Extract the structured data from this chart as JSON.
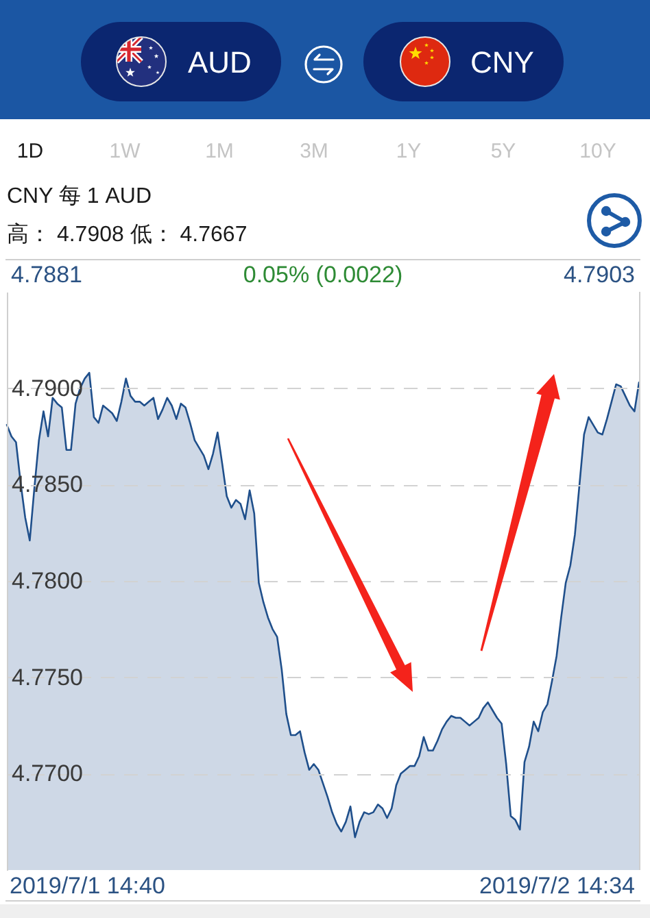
{
  "chart_data": {
    "type": "area",
    "title": "CNY 每 1 AUD",
    "subtitle": "高： 4.7908 低： 4.7667",
    "annotations": [
      "AUD",
      "CNY",
      "1D",
      "1W",
      "1M",
      "3M",
      "1Y",
      "5Y",
      "10Y",
      "4.7881",
      "0.05% (0.0022)",
      "4.7903",
      "2019/7/1 14:40",
      "2019/7/2 14:34"
    ],
    "categories": [
      null,
      null,
      null,
      null,
      null,
      null,
      null,
      null,
      null,
      null,
      null,
      null,
      null,
      null,
      null,
      null,
      null,
      null,
      null,
      null,
      null,
      null,
      null,
      null,
      null,
      null,
      null,
      null,
      null,
      null,
      null,
      null,
      null,
      null,
      null,
      null,
      null,
      null,
      null,
      null,
      null,
      null,
      null,
      null,
      null,
      null,
      null,
      null,
      null,
      null,
      null,
      null,
      null,
      null,
      null,
      null,
      null,
      null,
      null,
      null,
      null,
      null,
      null,
      null,
      null,
      null,
      null,
      null,
      null,
      null,
      null,
      null,
      null,
      null,
      null,
      null,
      null,
      null,
      null,
      null,
      null,
      null,
      null,
      null,
      null,
      null,
      null,
      null,
      null,
      null,
      null,
      null,
      null,
      null,
      null,
      null,
      null,
      null,
      null,
      null,
      null,
      null,
      null,
      null,
      null,
      null,
      null,
      null,
      null,
      null,
      null,
      null,
      null,
      null,
      null,
      null,
      null,
      null,
      null,
      null,
      null,
      null,
      null,
      null,
      null,
      null,
      null,
      null,
      null,
      null,
      null,
      null,
      null,
      null,
      null,
      null,
      null,
      null,
      null
    ],
    "series": [
      {
        "color": "#1f4f8b",
        "values": [
          4.7881,
          4.7875,
          4.7872,
          4.7851,
          4.7833,
          4.7821,
          4.7848,
          4.7873,
          4.7888,
          4.7875,
          4.7895,
          4.7892,
          4.789,
          4.7868,
          4.7868,
          4.7892,
          4.79,
          4.7905,
          4.7908,
          4.7885,
          4.7882,
          4.7891,
          4.7889,
          4.7887,
          4.7883,
          4.7893,
          4.7905,
          4.7896,
          4.7893,
          4.7893,
          4.7891,
          4.7893,
          4.7895,
          4.7884,
          4.7889,
          4.7895,
          4.7891,
          4.7884,
          4.7892,
          4.789,
          4.7882,
          4.7873,
          4.7869,
          4.7865,
          4.7858,
          4.7866,
          4.7877,
          4.7861,
          4.7844,
          4.7838,
          4.7842,
          4.784,
          4.7832,
          4.7847,
          4.7835,
          4.7799,
          4.7789,
          4.7781,
          4.7775,
          4.7771,
          4.7754,
          4.7731,
          4.772,
          4.772,
          4.7722,
          4.7711,
          4.7702,
          4.7705,
          4.7702,
          4.7695,
          4.7688,
          4.768,
          4.7674,
          4.767,
          4.7675,
          4.7683,
          4.7667,
          4.7675,
          4.768,
          4.7679,
          4.768,
          4.7684,
          4.7682,
          4.7677,
          4.7682,
          4.7694,
          4.77,
          4.7702,
          4.7704,
          4.7704,
          4.7709,
          4.7719,
          4.7712,
          4.7712,
          4.7717,
          4.7723,
          4.7727,
          4.773,
          4.7729,
          4.7729,
          4.7727,
          4.7725,
          4.7727,
          4.7729,
          4.7734,
          4.7737,
          4.7733,
          4.7729,
          4.7726,
          4.7705,
          4.7678,
          4.7676,
          4.7671,
          4.7706,
          4.7714,
          4.7727,
          4.7722,
          4.7732,
          4.7736,
          4.7748,
          4.7761,
          4.7781,
          4.7799,
          4.7808,
          4.7824,
          4.785,
          4.7876,
          4.7885,
          4.7881,
          4.7877,
          4.7876,
          4.7884,
          4.7893,
          4.7902,
          4.7901,
          4.7896,
          4.7891,
          4.7888,
          4.7903
        ]
      }
    ],
    "ylim": [
      4.765,
      4.795
    ],
    "yticks": [
      {
        "value": 4.77,
        "label": "4.7700"
      },
      {
        "value": 4.775,
        "label": "4.7750"
      },
      {
        "value": 4.78,
        "label": "4.7800"
      },
      {
        "value": 4.785,
        "label": "4.7850"
      },
      {
        "value": 4.79,
        "label": "4.7900"
      }
    ],
    "tick_labels": "y",
    "grid": "y"
  }
}
